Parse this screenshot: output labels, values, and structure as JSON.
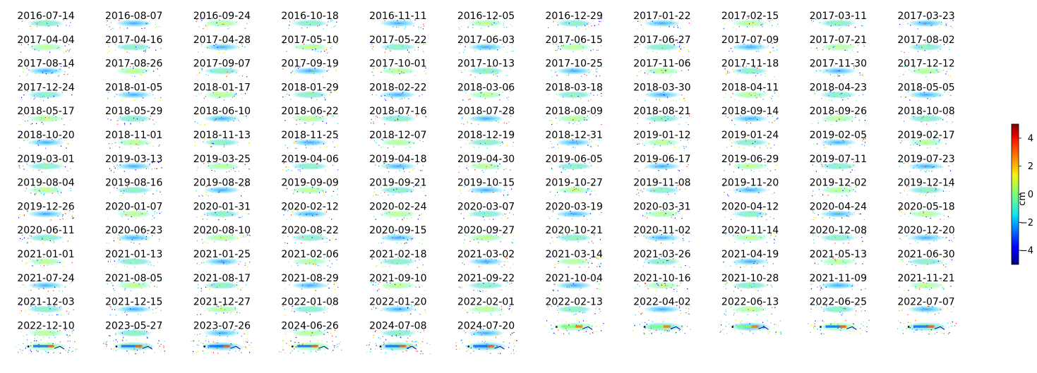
{
  "chart_data": {
    "type": "heatmap",
    "title": "",
    "layout": {
      "columns": 11,
      "rows": 15
    },
    "panels": [
      "2016-07-14",
      "2016-08-07",
      "2016-09-24",
      "2016-10-18",
      "2016-11-11",
      "2016-12-05",
      "2016-12-29",
      "2017-01-22",
      "2017-02-15",
      "2017-03-11",
      "2017-03-23",
      "2017-04-04",
      "2017-04-16",
      "2017-04-28",
      "2017-05-10",
      "2017-05-22",
      "2017-06-03",
      "2017-06-15",
      "2017-06-27",
      "2017-07-09",
      "2017-07-21",
      "2017-08-02",
      "2017-08-14",
      "2017-08-26",
      "2017-09-07",
      "2017-09-19",
      "2017-10-01",
      "2017-10-13",
      "2017-10-25",
      "2017-11-06",
      "2017-11-18",
      "2017-11-30",
      "2017-12-12",
      "2017-12-24",
      "2018-01-05",
      "2018-01-17",
      "2018-01-29",
      "2018-02-22",
      "2018-03-06",
      "2018-03-18",
      "2018-03-30",
      "2018-04-11",
      "2018-04-23",
      "2018-05-05",
      "2018-05-17",
      "2018-05-29",
      "2018-06-10",
      "2018-06-22",
      "2018-07-16",
      "2018-07-28",
      "2018-08-09",
      "2018-08-21",
      "2018-09-14",
      "2018-09-26",
      "2018-10-08",
      "2018-10-20",
      "2018-11-01",
      "2018-11-13",
      "2018-11-25",
      "2018-12-07",
      "2018-12-19",
      "2018-12-31",
      "2019-01-12",
      "2019-01-24",
      "2019-02-05",
      "2019-02-17",
      "2019-03-01",
      "2019-03-13",
      "2019-03-25",
      "2019-04-06",
      "2019-04-18",
      "2019-04-30",
      "2019-06-05",
      "2019-06-17",
      "2019-06-29",
      "2019-07-11",
      "2019-07-23",
      "2019-08-04",
      "2019-08-16",
      "2019-08-28",
      "2019-09-09",
      "2019-09-21",
      "2019-10-15",
      "2019-10-27",
      "2019-11-08",
      "2019-11-20",
      "2019-12-02",
      "2019-12-14",
      "2019-12-26",
      "2020-01-07",
      "2020-01-31",
      "2020-02-12",
      "2020-02-24",
      "2020-03-07",
      "2020-03-19",
      "2020-03-31",
      "2020-04-12",
      "2020-04-24",
      "2020-05-18",
      "2020-06-11",
      "2020-06-23",
      "2020-08-10",
      "2020-08-22",
      "2020-09-15",
      "2020-09-27",
      "2020-10-21",
      "2020-11-02",
      "2020-11-14",
      "2020-12-08",
      "2020-12-20",
      "2021-01-01",
      "2021-01-13",
      "2021-01-25",
      "2021-02-06",
      "2021-02-18",
      "2021-03-02",
      "2021-03-14",
      "2021-03-26",
      "2021-04-19",
      "2021-05-13",
      "2021-06-30",
      "2021-07-24",
      "2021-08-05",
      "2021-08-17",
      "2021-08-29",
      "2021-09-10",
      "2021-09-22",
      "2021-10-04",
      "2021-10-16",
      "2021-10-28",
      "2021-11-09",
      "2021-11-21",
      "2021-12-03",
      "2021-12-15",
      "2021-12-27",
      "2022-01-08",
      "2022-01-20",
      "2022-02-01",
      "2022-02-13",
      "2022-04-02",
      "2022-06-13",
      "2022-06-25",
      "2022-07-07",
      "2022-12-10",
      "2023-05-27",
      "2023-07-26",
      "2024-06-26",
      "2024-07-08",
      "2024-07-20"
    ],
    "colorbar": {
      "label": "cm",
      "range": [
        -5,
        5
      ],
      "ticks": [
        4,
        2,
        0,
        -2,
        -4
      ],
      "tick_labels": [
        "4",
        "2",
        "0",
        "−2",
        "−4"
      ],
      "colormap": "jet"
    }
  }
}
